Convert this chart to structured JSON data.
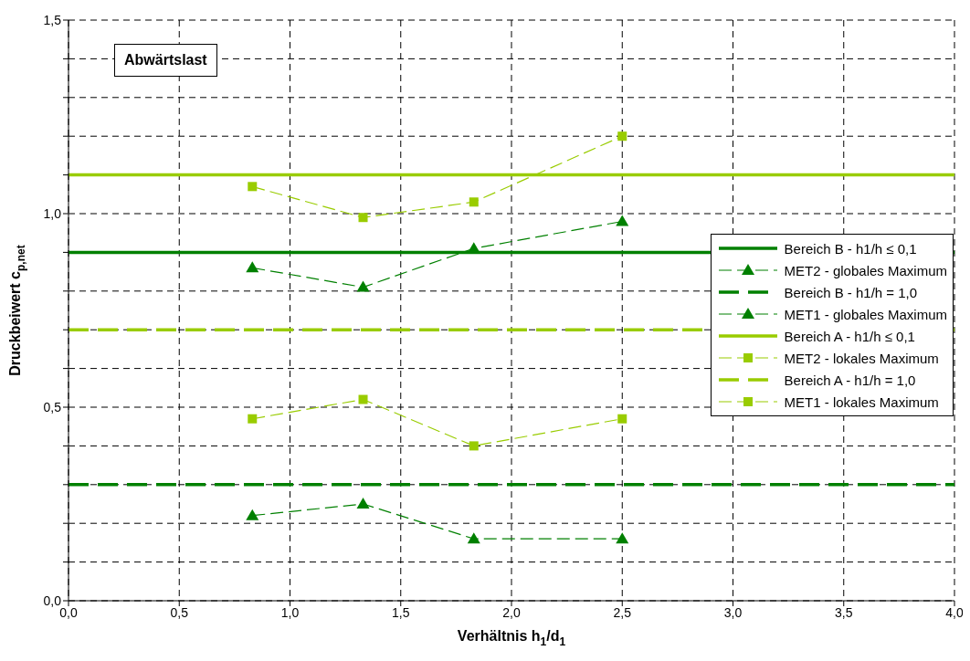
{
  "chart_data": {
    "type": "line",
    "xlabel": "Verhältnis h$_{1}$/d$_{1}$",
    "ylabel": "Druckbeiwert c$_{p,net}$",
    "annotations": [
      "Abwärtslast"
    ],
    "xlim": [
      0,
      4
    ],
    "ylim": [
      0,
      1.5
    ],
    "xticks": [
      {
        "value": 0,
        "label": "0,0"
      },
      {
        "value": 0.5,
        "label": "0,5"
      },
      {
        "value": 1,
        "label": "1,0"
      },
      {
        "value": 1.5,
        "label": "1,5"
      },
      {
        "value": 2,
        "label": "2,0"
      },
      {
        "value": 2.5,
        "label": "2,5"
      },
      {
        "value": 3,
        "label": "3,0"
      },
      {
        "value": 3.5,
        "label": "3,5"
      },
      {
        "value": 4,
        "label": "4,0"
      }
    ],
    "yticks": [
      {
        "value": 0,
        "label": "0,0"
      },
      {
        "value": 0.1,
        "label": null
      },
      {
        "value": 0.2,
        "label": null
      },
      {
        "value": 0.3,
        "label": null
      },
      {
        "value": 0.4,
        "label": null
      },
      {
        "value": 0.5,
        "label": "0,5"
      },
      {
        "value": 0.6,
        "label": null
      },
      {
        "value": 0.7,
        "label": null
      },
      {
        "value": 0.8,
        "label": null
      },
      {
        "value": 0.9,
        "label": null
      },
      {
        "value": 1,
        "label": "1,0"
      },
      {
        "value": 1.1,
        "label": null
      },
      {
        "value": 1.2,
        "label": null
      },
      {
        "value": 1.3,
        "label": null
      },
      {
        "value": 1.4,
        "label": null
      },
      {
        "value": 1.5,
        "label": "1,5"
      }
    ],
    "grid": true,
    "legend": "right",
    "series": [
      {
        "name": "Bereich B - h1/h ≤ 0,1",
        "color": "#008000",
        "x": [
          0,
          4
        ],
        "values": [
          0.9,
          0.9
        ],
        "line_style": "solid",
        "marker": "none"
      },
      {
        "name": "MET2 - globales Maximum",
        "color": "#008000",
        "x": [
          0.83,
          1.33,
          1.83,
          2.5
        ],
        "values": [
          0.86,
          0.81,
          0.91,
          0.98
        ],
        "line_style": "dashed",
        "marker": "triangle"
      },
      {
        "name": "Bereich B - h1/h = 1,0",
        "color": "#008000",
        "x": [
          0,
          4
        ],
        "values": [
          0.3,
          0.3
        ],
        "line_style": "dashed",
        "marker": "none"
      },
      {
        "name": "MET1 - globales Maximum",
        "color": "#008000",
        "x": [
          0.83,
          1.33,
          1.83,
          2.5
        ],
        "values": [
          0.22,
          0.25,
          0.16,
          0.16
        ],
        "line_style": "dashed",
        "marker": "triangle"
      },
      {
        "name": "Bereich A - h1/h ≤ 0,1",
        "color": "#99cc00",
        "x": [
          0,
          4
        ],
        "values": [
          1.1,
          1.1
        ],
        "line_style": "solid",
        "marker": "none"
      },
      {
        "name": "MET2 - lokales Maximum",
        "color": "#99cc00",
        "x": [
          0.83,
          1.33,
          1.83,
          2.5
        ],
        "values": [
          1.07,
          0.99,
          1.03,
          1.2
        ],
        "line_style": "dashed",
        "marker": "square"
      },
      {
        "name": "Bereich A - h1/h = 1,0",
        "color": "#99cc00",
        "x": [
          0,
          4
        ],
        "values": [
          0.7,
          0.7
        ],
        "line_style": "dashed",
        "marker": "none"
      },
      {
        "name": "MET1 - lokales Maximum",
        "color": "#99cc00",
        "x": [
          0.83,
          1.33,
          1.83,
          2.5
        ],
        "values": [
          0.47,
          0.52,
          0.4,
          0.47
        ],
        "line_style": "dashed",
        "marker": "square"
      }
    ]
  }
}
